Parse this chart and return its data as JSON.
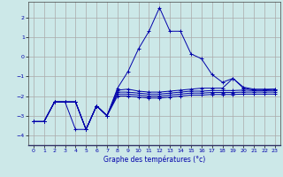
{
  "title": "Graphe des températures (°c)",
  "background_color": "#cce8e8",
  "grid_color": "#aaaaaa",
  "line_color": "#0000aa",
  "xlim": [
    -0.5,
    23.5
  ],
  "ylim": [
    -4.5,
    2.8
  ],
  "yticks": [
    -4,
    -3,
    -2,
    -1,
    0,
    1,
    2
  ],
  "xticks": [
    0,
    1,
    2,
    3,
    4,
    5,
    6,
    7,
    8,
    9,
    10,
    11,
    12,
    13,
    14,
    15,
    16,
    17,
    18,
    19,
    20,
    21,
    22,
    23
  ],
  "series": [
    {
      "x": [
        0,
        1,
        2,
        3,
        4,
        5,
        6,
        7,
        8,
        9,
        10,
        11,
        12,
        13,
        14,
        15,
        16,
        17,
        18,
        19,
        20,
        21,
        22,
        23
      ],
      "y": [
        -3.3,
        -3.3,
        -2.3,
        -2.3,
        -3.7,
        -3.7,
        -2.5,
        -3.0,
        -1.6,
        -0.75,
        0.4,
        1.3,
        2.5,
        1.3,
        1.3,
        0.15,
        -0.1,
        -0.9,
        -1.3,
        -1.1,
        -1.6,
        -1.7,
        -1.7,
        -1.65
      ]
    },
    {
      "x": [
        0,
        1,
        2,
        3,
        4,
        5,
        6,
        7,
        8,
        9,
        10,
        11,
        12,
        13,
        14,
        15,
        16,
        17,
        18,
        19,
        20,
        21,
        22,
        23
      ],
      "y": [
        -3.3,
        -3.3,
        -2.3,
        -2.3,
        -2.3,
        -3.7,
        -2.5,
        -3.0,
        -1.7,
        -1.65,
        -1.75,
        -1.8,
        -1.8,
        -1.75,
        -1.7,
        -1.65,
        -1.6,
        -1.6,
        -1.6,
        -1.1,
        -1.55,
        -1.65,
        -1.65,
        -1.65
      ]
    },
    {
      "x": [
        0,
        1,
        2,
        3,
        4,
        5,
        6,
        7,
        8,
        9,
        10,
        11,
        12,
        13,
        14,
        15,
        16,
        17,
        18,
        19,
        20,
        21,
        22,
        23
      ],
      "y": [
        -3.3,
        -3.3,
        -2.3,
        -2.3,
        -2.3,
        -3.7,
        -2.5,
        -3.0,
        -1.8,
        -1.8,
        -1.85,
        -1.9,
        -1.9,
        -1.85,
        -1.8,
        -1.75,
        -1.75,
        -1.72,
        -1.72,
        -1.72,
        -1.7,
        -1.72,
        -1.72,
        -1.72
      ]
    },
    {
      "x": [
        0,
        1,
        2,
        3,
        4,
        5,
        6,
        7,
        8,
        9,
        10,
        11,
        12,
        13,
        14,
        15,
        16,
        17,
        18,
        19,
        20,
        21,
        22,
        23
      ],
      "y": [
        -3.3,
        -3.3,
        -2.3,
        -2.3,
        -2.3,
        -3.7,
        -2.5,
        -3.0,
        -1.9,
        -1.9,
        -1.95,
        -2.0,
        -2.0,
        -1.95,
        -1.9,
        -1.85,
        -1.85,
        -1.82,
        -1.82,
        -1.82,
        -1.8,
        -1.8,
        -1.8,
        -1.8
      ]
    },
    {
      "x": [
        0,
        1,
        2,
        3,
        4,
        5,
        6,
        7,
        8,
        9,
        10,
        11,
        12,
        13,
        14,
        15,
        16,
        17,
        18,
        19,
        20,
        21,
        22,
        23
      ],
      "y": [
        -3.3,
        -3.3,
        -2.3,
        -2.3,
        -2.3,
        -3.7,
        -2.5,
        -3.0,
        -2.0,
        -2.0,
        -2.05,
        -2.1,
        -2.1,
        -2.05,
        -2.0,
        -1.95,
        -1.95,
        -1.92,
        -1.92,
        -1.92,
        -1.9,
        -1.9,
        -1.9,
        -1.9
      ]
    }
  ]
}
